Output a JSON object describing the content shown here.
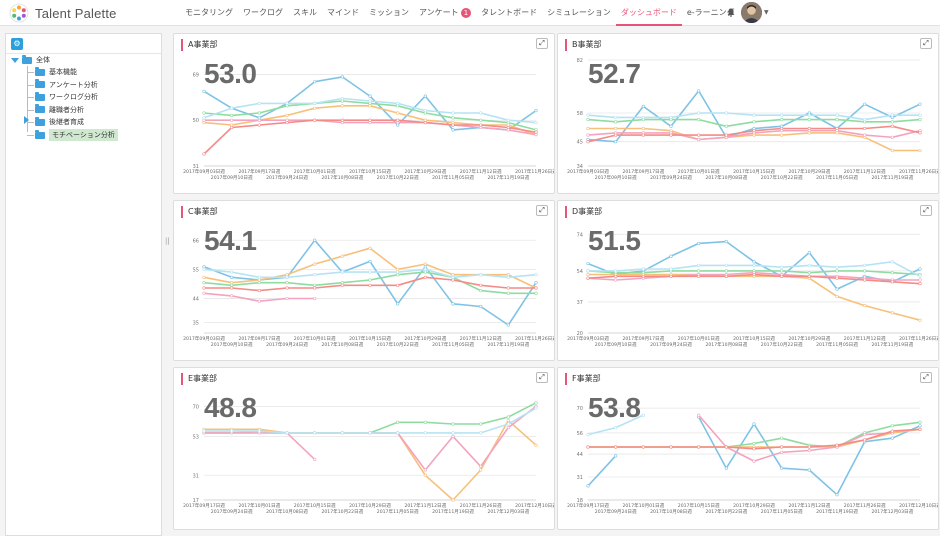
{
  "app": {
    "name": "Talent Palette"
  },
  "nav": [
    {
      "label": "モニタリング"
    },
    {
      "label": "ワークログ"
    },
    {
      "label": "スキル"
    },
    {
      "label": "マインド"
    },
    {
      "label": "ミッション"
    },
    {
      "label": "アンケート",
      "badge": "1"
    },
    {
      "label": "タレントボード"
    },
    {
      "label": "シミュレーション"
    },
    {
      "label": "ダッシュボード",
      "active": true
    },
    {
      "label": "e-ラーニング"
    }
  ],
  "sidebar": {
    "root": "全体",
    "items": [
      "基本機能",
      "アンケート分析",
      "ワークログ分析",
      "離職者分析",
      "後継者育成",
      "モチベーション分析"
    ],
    "selected": "モチベーション分析"
  },
  "colors": {
    "accent": "#e8537a",
    "series": [
      "#7ec3e6",
      "#8edca0",
      "#f7c07a",
      "#f4a3bf",
      "#f58b86",
      "#b6e3f3"
    ]
  },
  "panels": [
    {
      "title": "A事業部",
      "value": "53.0",
      "yticks": [
        "69",
        "50",
        "31"
      ],
      "ylim": [
        31,
        75
      ],
      "xlabels": [
        "2017年09月03日週",
        "2017年09月10日週",
        "2017年09月17日週",
        "2017年09月24日週",
        "2017年10月01日週",
        "2017年10月08日週",
        "2017年10月15日週",
        "2017年10月22日週",
        "2017年10月29日週",
        "2017年11月05日週",
        "2017年11月12日週",
        "2017年11月19日週",
        "2017年11月26日週"
      ],
      "series": [
        [
          62,
          55,
          51,
          57,
          66,
          68,
          60,
          48,
          60,
          46,
          47,
          46,
          54
        ],
        [
          53,
          52,
          53,
          56,
          57,
          58,
          57,
          56,
          53,
          51,
          50,
          49,
          46
        ],
        [
          49,
          48,
          50,
          52,
          55,
          56,
          56,
          53,
          50,
          49,
          48,
          48,
          44
        ],
        [
          50,
          50,
          50,
          50,
          50,
          49,
          49,
          49,
          49,
          48,
          47,
          46,
          44
        ],
        [
          36,
          47,
          48,
          49,
          50,
          50,
          50,
          50,
          49,
          48,
          48,
          47,
          45
        ],
        [
          51,
          55,
          57,
          57,
          57,
          59,
          58,
          57,
          54,
          53,
          53,
          50,
          49
        ]
      ]
    },
    {
      "title": "B事業部",
      "value": "52.7",
      "yticks": [
        "82",
        "58",
        "45",
        "34"
      ],
      "ylim": [
        34,
        82
      ],
      "xlabels": [
        "2017年09月03日週",
        "2017年09月10日週",
        "2017年09月17日週",
        "2017年09月24日週",
        "2017年10月01日週",
        "2017年10月08日週",
        "2017年10月15日週",
        "2017年10月22日週",
        "2017年10月29日週",
        "2017年11月05日週",
        "2017年11月12日週",
        "2017年11月19日週",
        "2017年11月26日週"
      ],
      "series": [
        [
          46,
          45,
          61,
          52,
          68,
          47,
          51,
          52,
          58,
          51,
          62,
          56,
          62
        ],
        [
          55,
          54,
          55,
          55,
          55,
          52,
          54,
          55,
          55,
          55,
          54,
          54,
          55
        ],
        [
          51,
          51,
          51,
          50,
          46,
          47,
          48,
          48,
          49,
          49,
          47,
          41,
          41
        ],
        [
          48,
          49,
          49,
          49,
          46,
          47,
          49,
          50,
          50,
          50,
          48,
          47,
          50
        ],
        [
          45,
          48,
          48,
          48,
          48,
          48,
          50,
          51,
          51,
          51,
          51,
          52,
          49
        ],
        [
          57,
          56,
          56,
          56,
          58,
          58,
          57,
          57,
          57,
          57,
          55,
          57,
          57
        ]
      ]
    },
    {
      "title": "C事業部",
      "value": "54.1",
      "yticks": [
        "66",
        "55",
        "44",
        "35"
      ],
      "ylim": [
        31,
        71
      ],
      "xlabels": [
        "2017年09月03日週",
        "2017年09月10日週",
        "2017年09月17日週",
        "2017年09月24日週",
        "2017年10月01日週",
        "2017年10月08日週",
        "2017年10月15日週",
        "2017年10月22日週",
        "2017年10月29日週",
        "2017年11月05日週",
        "2017年11月12日週",
        "2017年11月19日週",
        "2017年11月26日週"
      ],
      "series": [
        [
          56,
          52,
          51,
          52,
          66,
          54,
          58,
          42,
          56,
          42,
          41,
          34,
          50
        ],
        [
          50,
          49,
          50,
          50,
          49,
          50,
          51,
          53,
          54,
          52,
          47,
          46,
          46
        ],
        [
          52,
          50,
          51,
          53,
          57,
          60,
          63,
          55,
          57,
          53,
          53,
          53,
          48
        ],
        [
          46,
          45,
          43,
          44,
          44,
          null,
          null,
          null,
          null,
          null,
          null,
          null,
          null
        ],
        [
          48,
          48,
          47,
          48,
          48,
          49,
          49,
          49,
          52,
          51,
          49,
          48,
          48
        ],
        [
          55,
          54,
          52,
          52,
          53,
          54,
          54,
          54,
          55,
          52,
          53,
          52,
          53
        ]
      ]
    },
    {
      "title": "D事業部",
      "value": "51.5",
      "yticks": [
        "74",
        "54",
        "37",
        "20"
      ],
      "ylim": [
        20,
        78
      ],
      "xlabels": [
        "2017年09月03日週",
        "2017年09月10日週",
        "2017年09月17日週",
        "2017年09月24日週",
        "2017年10月01日週",
        "2017年10月08日週",
        "2017年10月15日週",
        "2017年10月22日週",
        "2017年10月29日週",
        "2017年11月05日週",
        "2017年11月12日週",
        "2017年11月19日週",
        "2017年11月26日週"
      ],
      "series": [
        [
          58,
          52,
          54,
          62,
          69,
          70,
          59,
          51,
          64,
          44,
          51,
          48,
          55
        ],
        [
          54,
          53,
          53,
          54,
          54,
          54,
          54,
          54,
          53,
          54,
          54,
          53,
          52
        ],
        [
          52,
          52,
          52,
          52,
          52,
          51,
          51,
          51,
          50,
          40,
          35,
          31,
          27
        ],
        [
          50,
          49,
          50,
          51,
          52,
          52,
          53,
          52,
          51,
          51,
          50,
          49,
          49
        ],
        [
          50,
          51,
          51,
          51,
          51,
          51,
          52,
          51,
          51,
          50,
          49,
          48,
          47
        ],
        [
          54,
          54,
          55,
          55,
          57,
          57,
          57,
          56,
          57,
          56,
          57,
          59,
          51
        ]
      ]
    },
    {
      "title": "E事業部",
      "value": "48.8",
      "yticks": [
        "70",
        "53",
        "31",
        "17"
      ],
      "ylim": [
        17,
        77
      ],
      "xlabels": [
        "2017年09月17日週",
        "2017年09月24日週",
        "2017年10月01日週",
        "2017年10月08日週",
        "2017年10月15日週",
        "2017年10月22日週",
        "2017年10月29日週",
        "2017年11月05日週",
        "2017年11月12日週",
        "2017年11月19日週",
        "2017年11月26日週",
        "2017年12月03日週",
        "2017年12月10日週"
      ],
      "series": [
        [
          null,
          null,
          null,
          null,
          null,
          null,
          null,
          null,
          null,
          null,
          null,
          null,
          null
        ],
        [
          55,
          55,
          56,
          55,
          55,
          55,
          55,
          61,
          61,
          60,
          60,
          64,
          72
        ],
        [
          57,
          57,
          57,
          55,
          55,
          55,
          55,
          55,
          31,
          17,
          34,
          62,
          48
        ],
        [
          55,
          55,
          55,
          55,
          40,
          null,
          55,
          55,
          34,
          53,
          36,
          58,
          70
        ],
        [
          null,
          null,
          null,
          null,
          null,
          null,
          null,
          null,
          null,
          null,
          null,
          null,
          null
        ],
        [
          56,
          56,
          56,
          55,
          55,
          55,
          55,
          55,
          55,
          55,
          55,
          60,
          69
        ]
      ]
    },
    {
      "title": "F事業部",
      "value": "53.8",
      "yticks": [
        "70",
        "56",
        "44",
        "31",
        "18"
      ],
      "ylim": [
        18,
        78
      ],
      "xlabels": [
        "2017年09月17日週",
        "2017年09月24日週",
        "2017年10月01日週",
        "2017年10月08日週",
        "2017年10月15日週",
        "2017年10月22日週",
        "2017年10月29日週",
        "2017年11月05日週",
        "2017年11月12日週",
        "2017年11月19日週",
        "2017年11月26日週",
        "2017年12月03日週",
        "2017年12月10日週"
      ],
      "series": [
        [
          26,
          43,
          null,
          null,
          65,
          36,
          61,
          36,
          35,
          21,
          51,
          53,
          60
        ],
        [
          48,
          48,
          48,
          48,
          48,
          48,
          50,
          53,
          49,
          48,
          56,
          60,
          62
        ],
        [
          48,
          48,
          48,
          48,
          48,
          48,
          48,
          48,
          48,
          48,
          52,
          56,
          58
        ],
        [
          null,
          null,
          null,
          null,
          66,
          48,
          40,
          45,
          46,
          48,
          55,
          56,
          null
        ],
        [
          48,
          48,
          48,
          48,
          48,
          48,
          47,
          48,
          48,
          49,
          52,
          57,
          58
        ],
        [
          55,
          59,
          66,
          null,
          null,
          null,
          null,
          null,
          null,
          null,
          null,
          null,
          null
        ]
      ]
    }
  ]
}
